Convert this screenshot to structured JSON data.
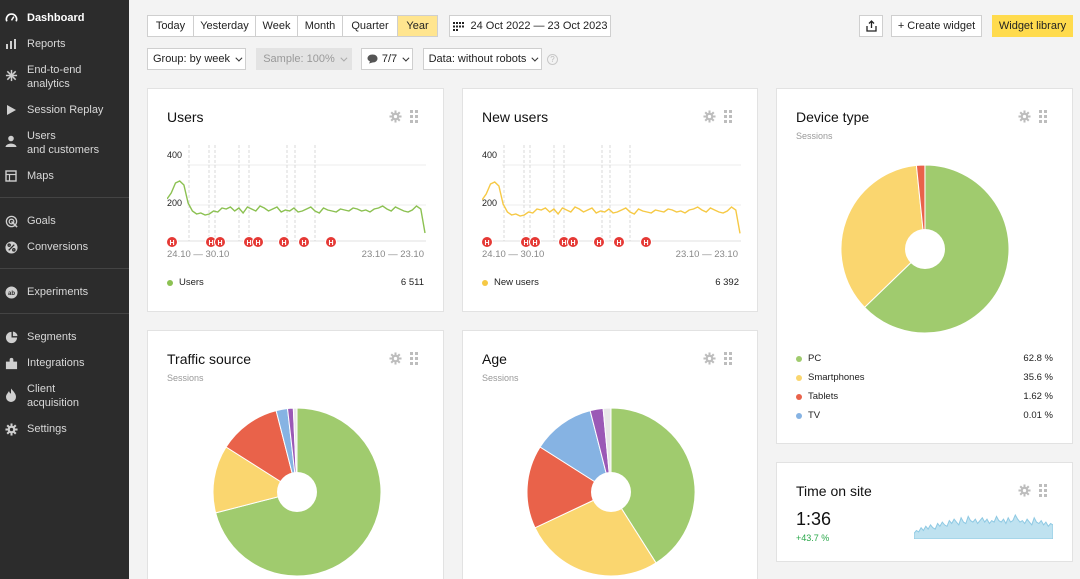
{
  "sidebar": {
    "items": [
      {
        "label": "Dashboard",
        "icon": "dashboard-icon"
      },
      {
        "label": "Reports",
        "icon": "reports-icon"
      },
      {
        "label": "End-to-end\nanalytics",
        "icon": "analytics-icon"
      },
      {
        "label": "Session Replay",
        "icon": "play-icon"
      },
      {
        "label": "Users\nand customers",
        "icon": "user-icon"
      },
      {
        "label": "Maps",
        "icon": "map-icon"
      },
      {
        "label": "Goals",
        "icon": "goals-icon"
      },
      {
        "label": "Conversions",
        "icon": "percent-icon"
      },
      {
        "label": "Experiments",
        "icon": "experiments-icon"
      },
      {
        "label": "Segments",
        "icon": "segments-icon"
      },
      {
        "label": "Integrations",
        "icon": "puzzle-icon"
      },
      {
        "label": "Client\nacquisition",
        "icon": "flame-icon"
      },
      {
        "label": "Settings",
        "icon": "gear-icon"
      }
    ]
  },
  "toolbar": {
    "periods": [
      "Today",
      "Yesterday",
      "Week",
      "Month",
      "Quarter",
      "Year"
    ],
    "active_period": "Year",
    "date_range": "24 Oct 2022 — 23 Oct 2023",
    "create_widget": "+ Create widget",
    "widget_library": "Widget library",
    "group": "Group: by week",
    "sample": "Sample: 100%",
    "attribution": "7/7",
    "data_filter": "Data: without robots",
    "help": "?"
  },
  "widgets": {
    "users": {
      "title": "Users",
      "y_ticks": [
        "400",
        "200"
      ],
      "range_start": "24.10 — 30.10",
      "range_end": "23.10 — 23.10",
      "legend": "Users",
      "value": "6 511",
      "color": "#8cc152"
    },
    "new_users": {
      "title": "New users",
      "y_ticks": [
        "400",
        "200"
      ],
      "range_start": "24.10 — 30.10",
      "range_end": "23.10 — 23.10",
      "legend": "New users",
      "value": "6 392",
      "color": "#f6c945"
    },
    "device": {
      "title": "Device type",
      "subtitle": "Sessions",
      "items": [
        {
          "label": "PC",
          "value": "62.8 %",
          "share": 62.8,
          "color": "#a0cb6e"
        },
        {
          "label": "Smartphones",
          "value": "35.6 %",
          "share": 35.6,
          "color": "#fad66f"
        },
        {
          "label": "Tablets",
          "value": "1.62 %",
          "share": 1.62,
          "color": "#e9624a"
        },
        {
          "label": "TV",
          "value": "0.01 %",
          "share": 0.01,
          "color": "#86b3e3"
        }
      ]
    },
    "traffic": {
      "title": "Traffic source",
      "subtitle": "Sessions",
      "slices": [
        {
          "share": 71.0,
          "color": "#a0cb6e"
        },
        {
          "share": 13.0,
          "color": "#fad66f"
        },
        {
          "share": 12.0,
          "color": "#e9624a"
        },
        {
          "share": 2.2,
          "color": "#86b3e3"
        },
        {
          "share": 1.1,
          "color": "#9b59b6"
        },
        {
          "share": 0.7,
          "color": "#e8e8e8"
        }
      ]
    },
    "age": {
      "title": "Age",
      "subtitle": "Sessions",
      "slices": [
        {
          "share": 41.0,
          "color": "#a0cb6e"
        },
        {
          "share": 27.0,
          "color": "#fad66f"
        },
        {
          "share": 16.0,
          "color": "#e9624a"
        },
        {
          "share": 12.0,
          "color": "#86b3e3"
        },
        {
          "share": 2.5,
          "color": "#9b59b6"
        },
        {
          "share": 1.5,
          "color": "#e8e8e8"
        }
      ]
    },
    "time_on_site": {
      "title": "Time on site",
      "value": "1:36",
      "delta": "+43.7 %",
      "color": "#8ec9e3"
    }
  },
  "chart_data": [
    {
      "type": "line",
      "title": "Users",
      "ylim": [
        0,
        450
      ],
      "series": [
        {
          "name": "Users",
          "values": [
            210,
            240,
            290,
            300,
            280,
            190,
            150,
            135,
            140,
            130,
            135,
            150,
            145,
            165,
            160,
            170,
            150,
            165,
            140,
            170,
            160,
            150,
            175,
            165,
            150,
            160,
            170,
            145,
            155,
            150,
            165,
            145,
            150,
            160,
            170,
            150,
            140,
            165,
            155,
            150,
            145,
            160,
            155,
            150,
            165,
            160,
            150,
            155,
            145,
            160,
            165,
            175,
            160,
            150,
            170,
            160,
            150,
            145,
            155,
            175,
            160,
            40
          ]
        }
      ]
    },
    {
      "type": "line",
      "title": "New users",
      "ylim": [
        0,
        450
      ],
      "series": [
        {
          "name": "New users",
          "values": [
            205,
            235,
            285,
            295,
            275,
            185,
            145,
            130,
            135,
            125,
            130,
            145,
            140,
            160,
            155,
            165,
            145,
            160,
            135,
            165,
            155,
            145,
            170,
            160,
            145,
            155,
            165,
            140,
            150,
            145,
            160,
            140,
            145,
            155,
            165,
            145,
            135,
            160,
            150,
            145,
            140,
            155,
            150,
            145,
            160,
            155,
            145,
            150,
            140,
            155,
            160,
            170,
            155,
            145,
            165,
            155,
            145,
            140,
            150,
            170,
            155,
            38
          ]
        }
      ]
    },
    {
      "type": "area",
      "title": "Time on site",
      "series": [
        {
          "name": "Time on site",
          "values": [
            4,
            6,
            5,
            8,
            6,
            9,
            7,
            10,
            8,
            7,
            11,
            9,
            12,
            10,
            9,
            13,
            11,
            14,
            12,
            10,
            15,
            12,
            11,
            16,
            13,
            12,
            14,
            11,
            13,
            15,
            12,
            14,
            11,
            13,
            12,
            16,
            13,
            12,
            14,
            11,
            15,
            12,
            13,
            17,
            14,
            12,
            13,
            11,
            14,
            12,
            10,
            15,
            12,
            11,
            13,
            10,
            12,
            9,
            11,
            10
          ]
        }
      ]
    }
  ]
}
